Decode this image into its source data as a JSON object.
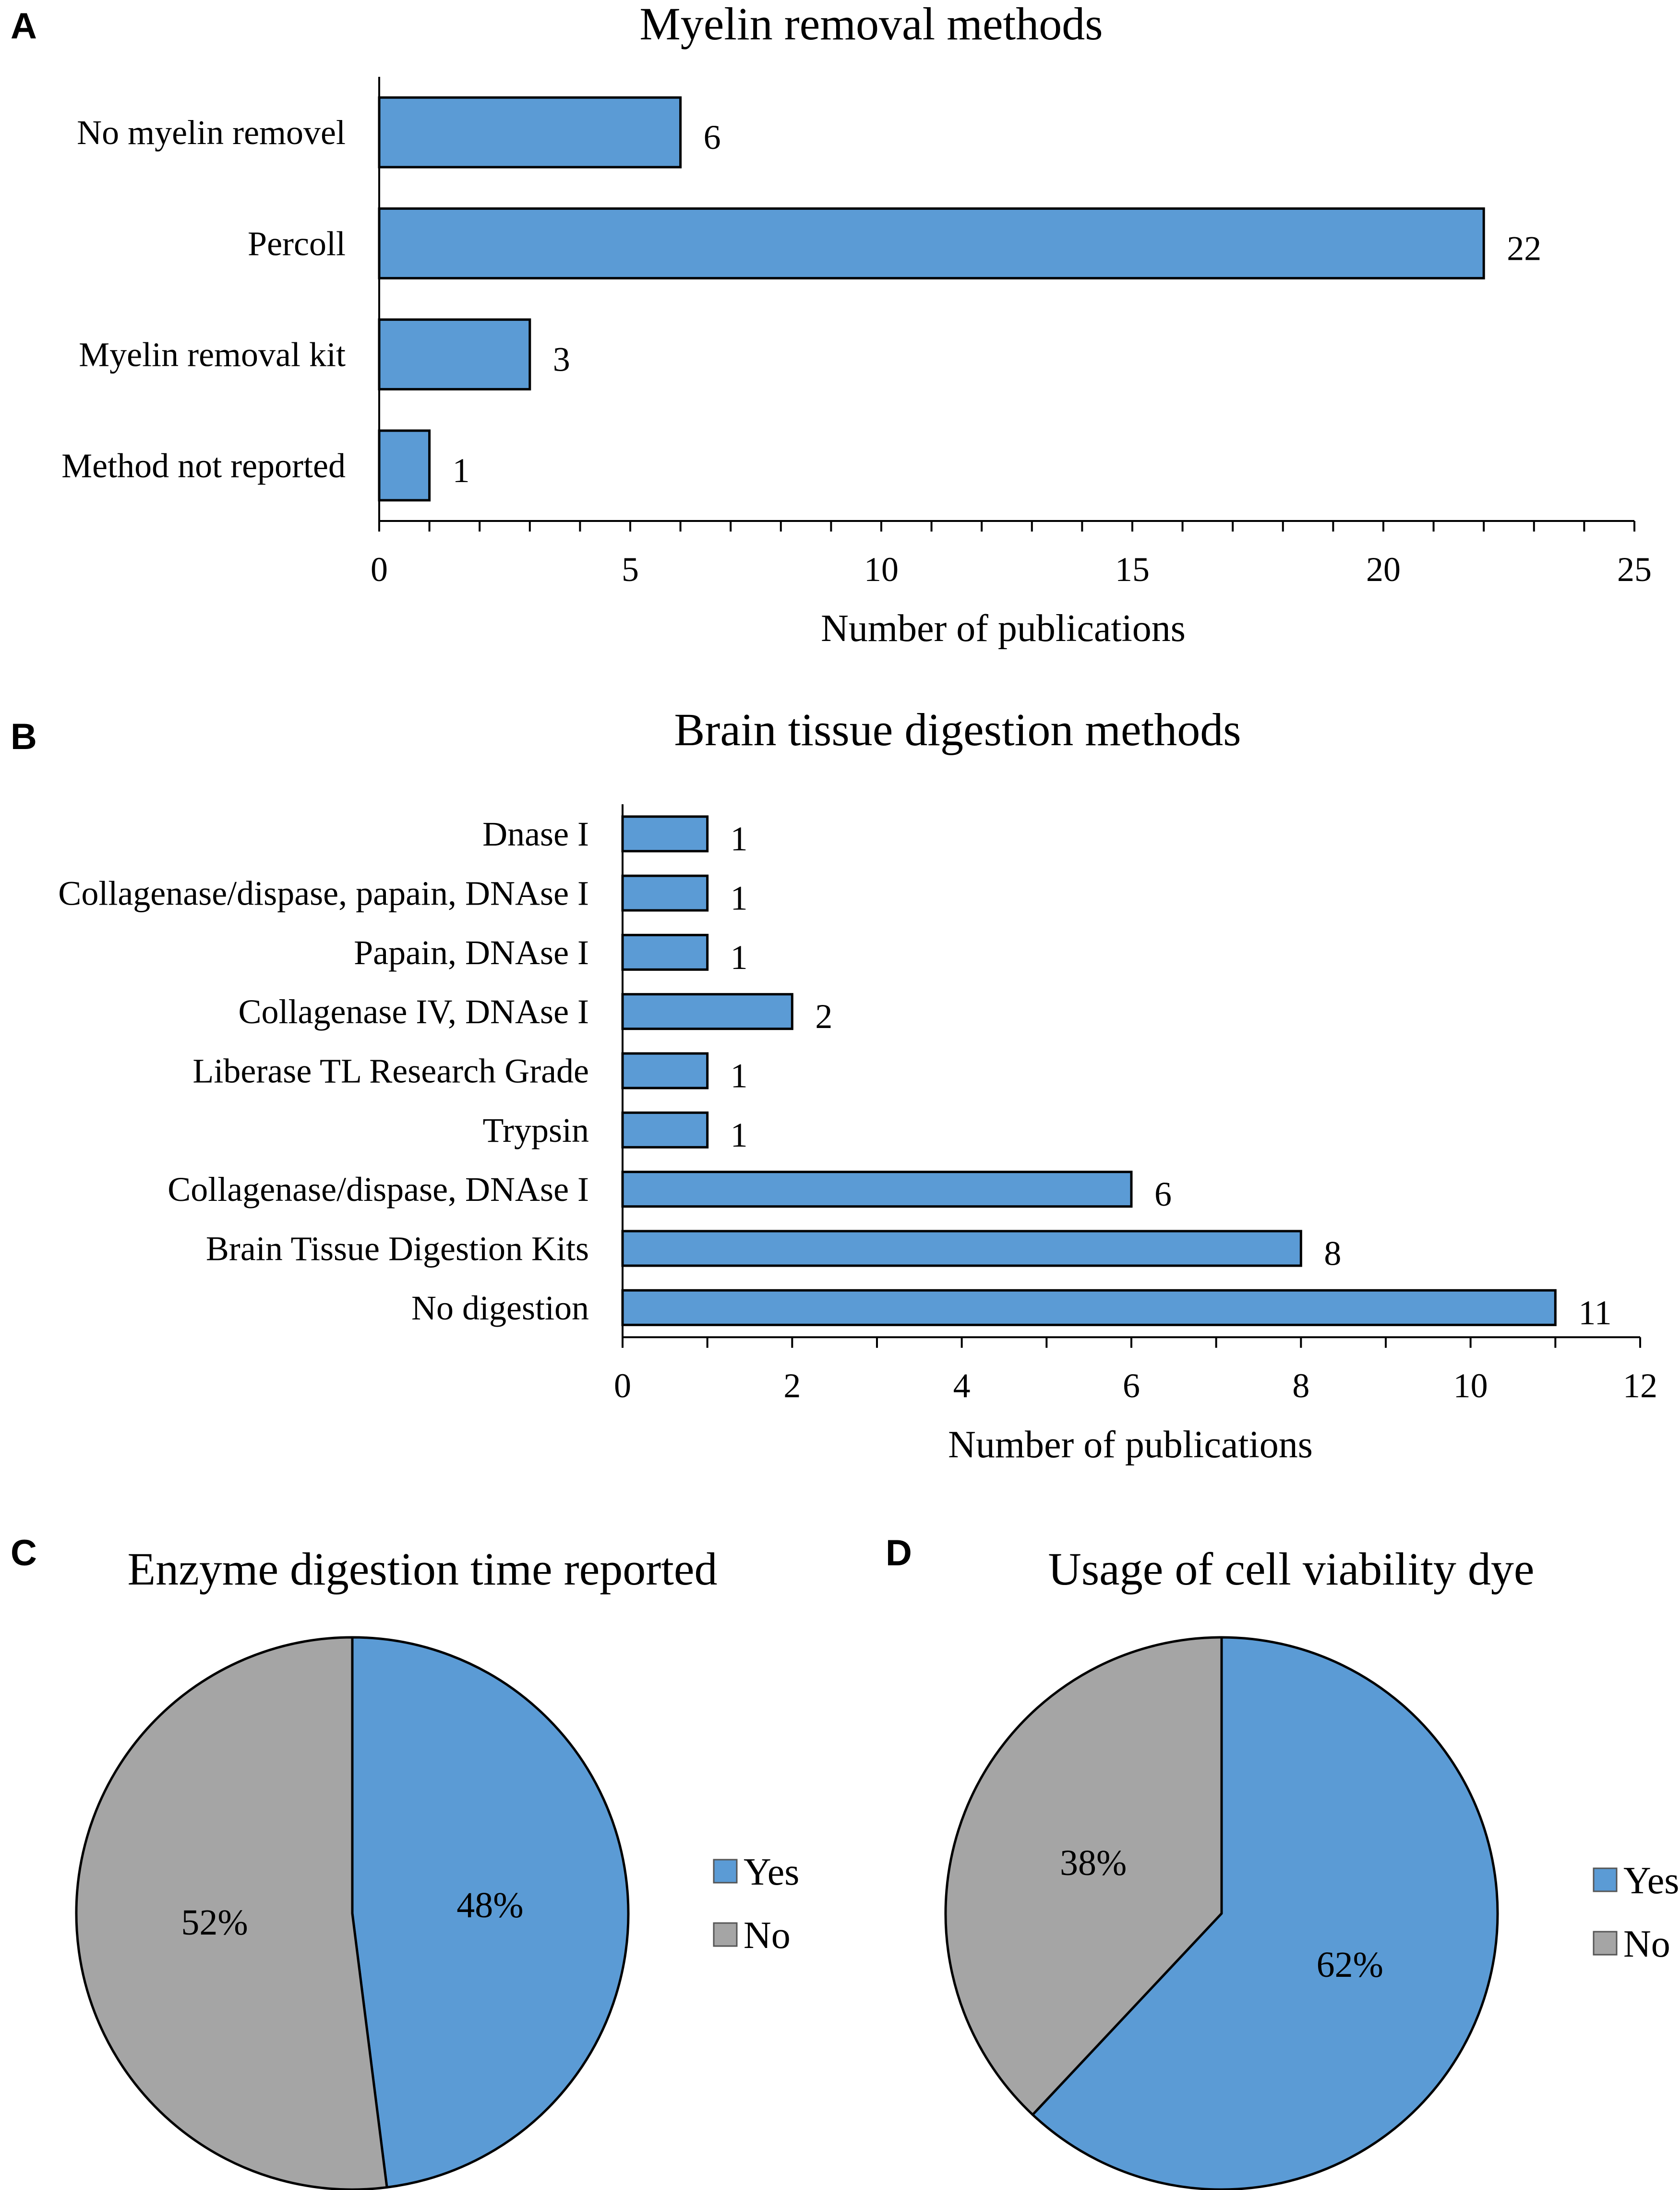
{
  "colors": {
    "blue": "#5b9bd5",
    "gray": "#a5a5a5",
    "stroke": "#000000"
  },
  "panels": {
    "a": "A",
    "b": "B",
    "c": "C",
    "d": "D"
  },
  "chart_data": [
    {
      "type": "bar",
      "orientation": "horizontal",
      "title": "Myelin removal methods",
      "xlabel": "Number of publications",
      "categories": [
        "No myelin removel",
        "Percoll",
        "Myelin removal kit",
        "Method not reported"
      ],
      "values": [
        6,
        22,
        3,
        1
      ],
      "xlim": [
        0,
        25
      ],
      "xticks": [
        0,
        5,
        10,
        15,
        20,
        25
      ],
      "minor_step": 1,
      "grid": false
    },
    {
      "type": "bar",
      "orientation": "horizontal",
      "title": "Brain tissue digestion methods",
      "xlabel": "Number of publications",
      "categories": [
        "Dnase I",
        "Collagenase/dispase, papain, DNAse I",
        "Papain, DNAse I",
        "Collagenase IV, DNAse I",
        "Liberase TL Research Grade",
        "Trypsin",
        "Collagenase/dispase, DNAse I",
        "Brain Tissue Digestion Kits",
        "No digestion"
      ],
      "values": [
        1,
        1,
        1,
        2,
        1,
        1,
        6,
        8,
        11
      ],
      "xlim": [
        0,
        12
      ],
      "xticks": [
        0,
        2,
        4,
        6,
        8,
        10,
        12
      ],
      "minor_step": 1,
      "grid": false
    },
    {
      "type": "pie",
      "title": "Enzyme digestion time reported",
      "labels": [
        "Yes",
        "No"
      ],
      "values": [
        48,
        52
      ],
      "value_labels": [
        "48%",
        "52%"
      ],
      "legend": "right"
    },
    {
      "type": "pie",
      "title": "Usage of cell viability dye",
      "labels": [
        "Yes",
        "No"
      ],
      "values": [
        62,
        38
      ],
      "value_labels": [
        "62%",
        "38%"
      ],
      "legend": "right"
    }
  ]
}
